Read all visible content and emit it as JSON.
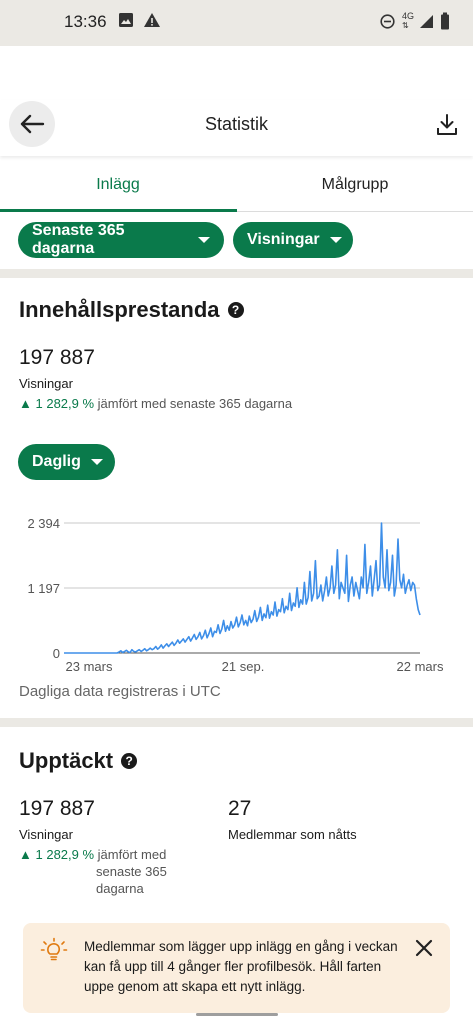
{
  "status_bar": {
    "time": "13:36",
    "left_icons": [
      "image-icon",
      "warning-icon"
    ],
    "right_icons": [
      "do-not-disturb-icon",
      "4g-icon",
      "signal-icon",
      "battery-icon"
    ],
    "network_label": "4G"
  },
  "app_bar": {
    "title": "Statistik",
    "back_icon": "arrow-left-icon",
    "action_icon": "download-icon"
  },
  "tabs": [
    {
      "label": "Inlägg",
      "active": true
    },
    {
      "label": "Målgrupp",
      "active": false
    }
  ],
  "filters": {
    "period": "Senaste 365 dagarna",
    "metric": "Visningar"
  },
  "performance": {
    "title": "Innehållsprestanda",
    "help_glyph": "?",
    "value": "197 887",
    "label": "Visningar",
    "change": "1 282,9 %",
    "change_text": "jämfört med senaste 365 dagarna",
    "granularity": "Daglig",
    "footnote": "Dagliga data registreras i UTC"
  },
  "chart_data": {
    "type": "line",
    "title": "",
    "xlabel": "",
    "ylabel": "",
    "ylim": [
      0,
      2394
    ],
    "y_ticks": [
      "2 394",
      "1 197",
      "0"
    ],
    "y_tick_values": [
      2394,
      1197,
      0
    ],
    "x_tick_labels": [
      "23 mars",
      "21 sep.",
      "22 mars"
    ],
    "grid": true,
    "line_color": "#3d8ee8",
    "series": [
      {
        "values": [
          0,
          0,
          0,
          0,
          0,
          0,
          0,
          0,
          0,
          0,
          0,
          0,
          0,
          0,
          0,
          0,
          0,
          0,
          0,
          0,
          0,
          0,
          0,
          0,
          0,
          0,
          0,
          0,
          0,
          0,
          20,
          40,
          10,
          30,
          50,
          20,
          10,
          60,
          30,
          20,
          40,
          60,
          30,
          50,
          80,
          40,
          60,
          90,
          60,
          80,
          120,
          70,
          100,
          150,
          90,
          130,
          170,
          120,
          160,
          200,
          140,
          180,
          240,
          180,
          220,
          260,
          200,
          250,
          300,
          220,
          280,
          340,
          250,
          300,
          380,
          260,
          320,
          420,
          280,
          360,
          460,
          300,
          400,
          380,
          520,
          360,
          440,
          600,
          400,
          500,
          420,
          580,
          460,
          520,
          660,
          480,
          560,
          700,
          520,
          600,
          500,
          680,
          560,
          620,
          780,
          580,
          660,
          840,
          600,
          720,
          650,
          880,
          640,
          760,
          700,
          940,
          680,
          800,
          760,
          1000,
          740,
          860,
          800,
          1100,
          780,
          920,
          860,
          1200,
          840,
          980,
          900,
          1300,
          900,
          1020,
          1500,
          960,
          1100,
          1700,
          1000,
          1050,
          1250,
          960,
          1150,
          1400,
          1050,
          1200,
          1600,
          1100,
          1250,
          1900,
          1000,
          1300,
          1200,
          1100,
          1800,
          950,
          1250,
          1400,
          1050,
          1300,
          1150,
          1000,
          1400,
          1200,
          2000,
          1100,
          1300,
          1600,
          1050,
          1350,
          1700,
          1150,
          1250,
          2394,
          1400,
          1200,
          1900,
          1150,
          1300,
          1800,
          1050,
          1250,
          2100,
          1350,
          1200,
          1450,
          1100,
          1250,
          1350,
          1150,
          1300,
          1250,
          1000,
          800,
          700
        ]
      }
    ]
  },
  "discovery": {
    "title": "Upptäckt",
    "help_glyph": "?",
    "impressions_value": "197 887",
    "impressions_label": "Visningar",
    "impressions_change": "1 282,9 %",
    "impressions_change_text_1": "jämfört med",
    "impressions_change_text_2": "senaste 365",
    "impressions_change_text_3": "dagarna",
    "members_value": "27",
    "members_label": "Medlemmar som nåtts"
  },
  "tip": {
    "icon": "lightbulb-icon",
    "text": "Medlemmar som lägger upp inlägg en gång i veckan kan få upp till 4 gånger fler profilbesök. Håll farten uppe genom att skapa ett nytt inlägg.",
    "close_icon": "close-icon"
  },
  "colors": {
    "brand_green": "#0a7a4b",
    "chart_line": "#3d8ee8",
    "separator": "#ebe9e4",
    "tip_background": "#fbeede",
    "tip_icon": "#e07a10"
  }
}
